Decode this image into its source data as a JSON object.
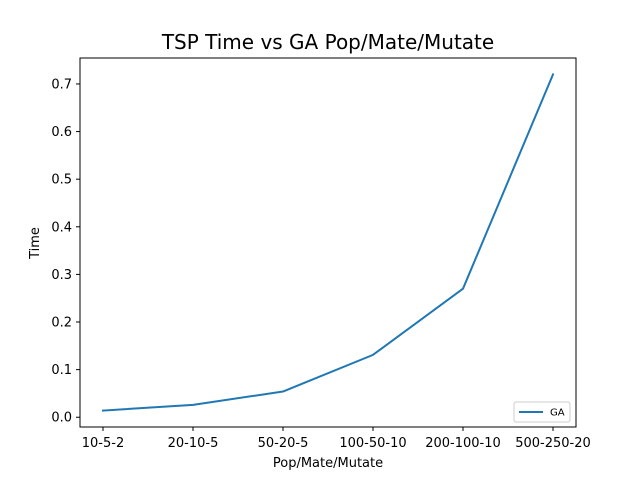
{
  "chart_data": {
    "type": "line",
    "title": "TSP Time vs GA Pop/Mate/Mutate",
    "xlabel": "Pop/Mate/Mutate",
    "ylabel": "Time",
    "categories": [
      "10-5-2",
      "20-10-5",
      "50-20-5",
      "100-50-10",
      "200-100-10",
      "500-250-20"
    ],
    "series": [
      {
        "name": "GA",
        "values": [
          0.014,
          0.026,
          0.054,
          0.131,
          0.27,
          0.72
        ],
        "color": "#1f77b4"
      }
    ],
    "yticks": [
      0.0,
      0.1,
      0.2,
      0.3,
      0.4,
      0.5,
      0.6,
      0.7
    ],
    "ylim": [
      -0.0205,
      0.7545
    ],
    "grid": false,
    "legend_position": "lower-right"
  }
}
